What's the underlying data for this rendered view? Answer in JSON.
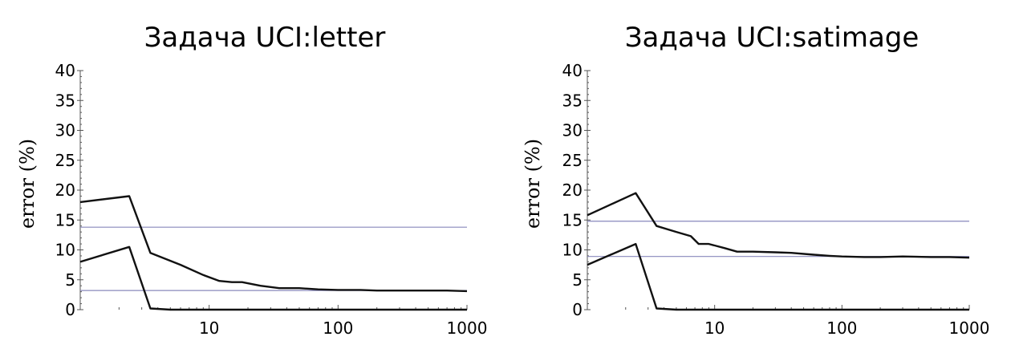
{
  "chart_data": [
    {
      "type": "line",
      "title": "Задача UCI:letter",
      "ylabel": "error (%)",
      "xlabel": "",
      "xscale": "log",
      "xlim": [
        1,
        1000
      ],
      "ylim": [
        0,
        40
      ],
      "yticks": [
        0,
        5,
        10,
        15,
        20,
        25,
        30,
        35,
        40
      ],
      "xticks": [
        10,
        100,
        1000
      ],
      "grid": false,
      "reference_lines": [
        13.8,
        3.2
      ],
      "series": [
        {
          "x": [
            1,
            2.4,
            3.5,
            6,
            9,
            12,
            15,
            18,
            25,
            35,
            50,
            70,
            100,
            150,
            200,
            300,
            500,
            700,
            1000
          ],
          "y": [
            18,
            19,
            9.5,
            7.5,
            5.8,
            4.8,
            4.6,
            4.6,
            4.0,
            3.6,
            3.6,
            3.4,
            3.3,
            3.3,
            3.2,
            3.2,
            3.2,
            3.2,
            3.1
          ]
        },
        {
          "x": [
            1,
            2.4,
            3.5,
            5,
            10,
            100,
            1000
          ],
          "y": [
            8,
            10.5,
            0.2,
            0,
            0,
            0,
            0
          ]
        }
      ]
    },
    {
      "type": "line",
      "title": "Задача UCI:satimage",
      "ylabel": "error (%)",
      "xlabel": "",
      "xscale": "log",
      "xlim": [
        1,
        1000
      ],
      "ylim": [
        0,
        40
      ],
      "yticks": [
        0,
        5,
        10,
        15,
        20,
        25,
        30,
        35,
        40
      ],
      "xticks": [
        10,
        100,
        1000
      ],
      "grid": false,
      "reference_lines": [
        14.8,
        8.9
      ],
      "series": [
        {
          "x": [
            1,
            2.4,
            3.5,
            5,
            6.5,
            7.5,
            9,
            12,
            15,
            20,
            30,
            40,
            60,
            80,
            100,
            150,
            200,
            300,
            500,
            700,
            1000
          ],
          "y": [
            15.8,
            19.5,
            14.0,
            13.0,
            12.3,
            11.0,
            11.0,
            10.3,
            9.7,
            9.7,
            9.6,
            9.5,
            9.2,
            9.0,
            8.9,
            8.8,
            8.8,
            8.9,
            8.8,
            8.8,
            8.7
          ]
        },
        {
          "x": [
            1,
            2.4,
            3.5,
            5,
            10,
            100,
            1000
          ],
          "y": [
            7.5,
            11.0,
            0.2,
            0,
            0,
            0,
            0
          ]
        }
      ]
    }
  ]
}
